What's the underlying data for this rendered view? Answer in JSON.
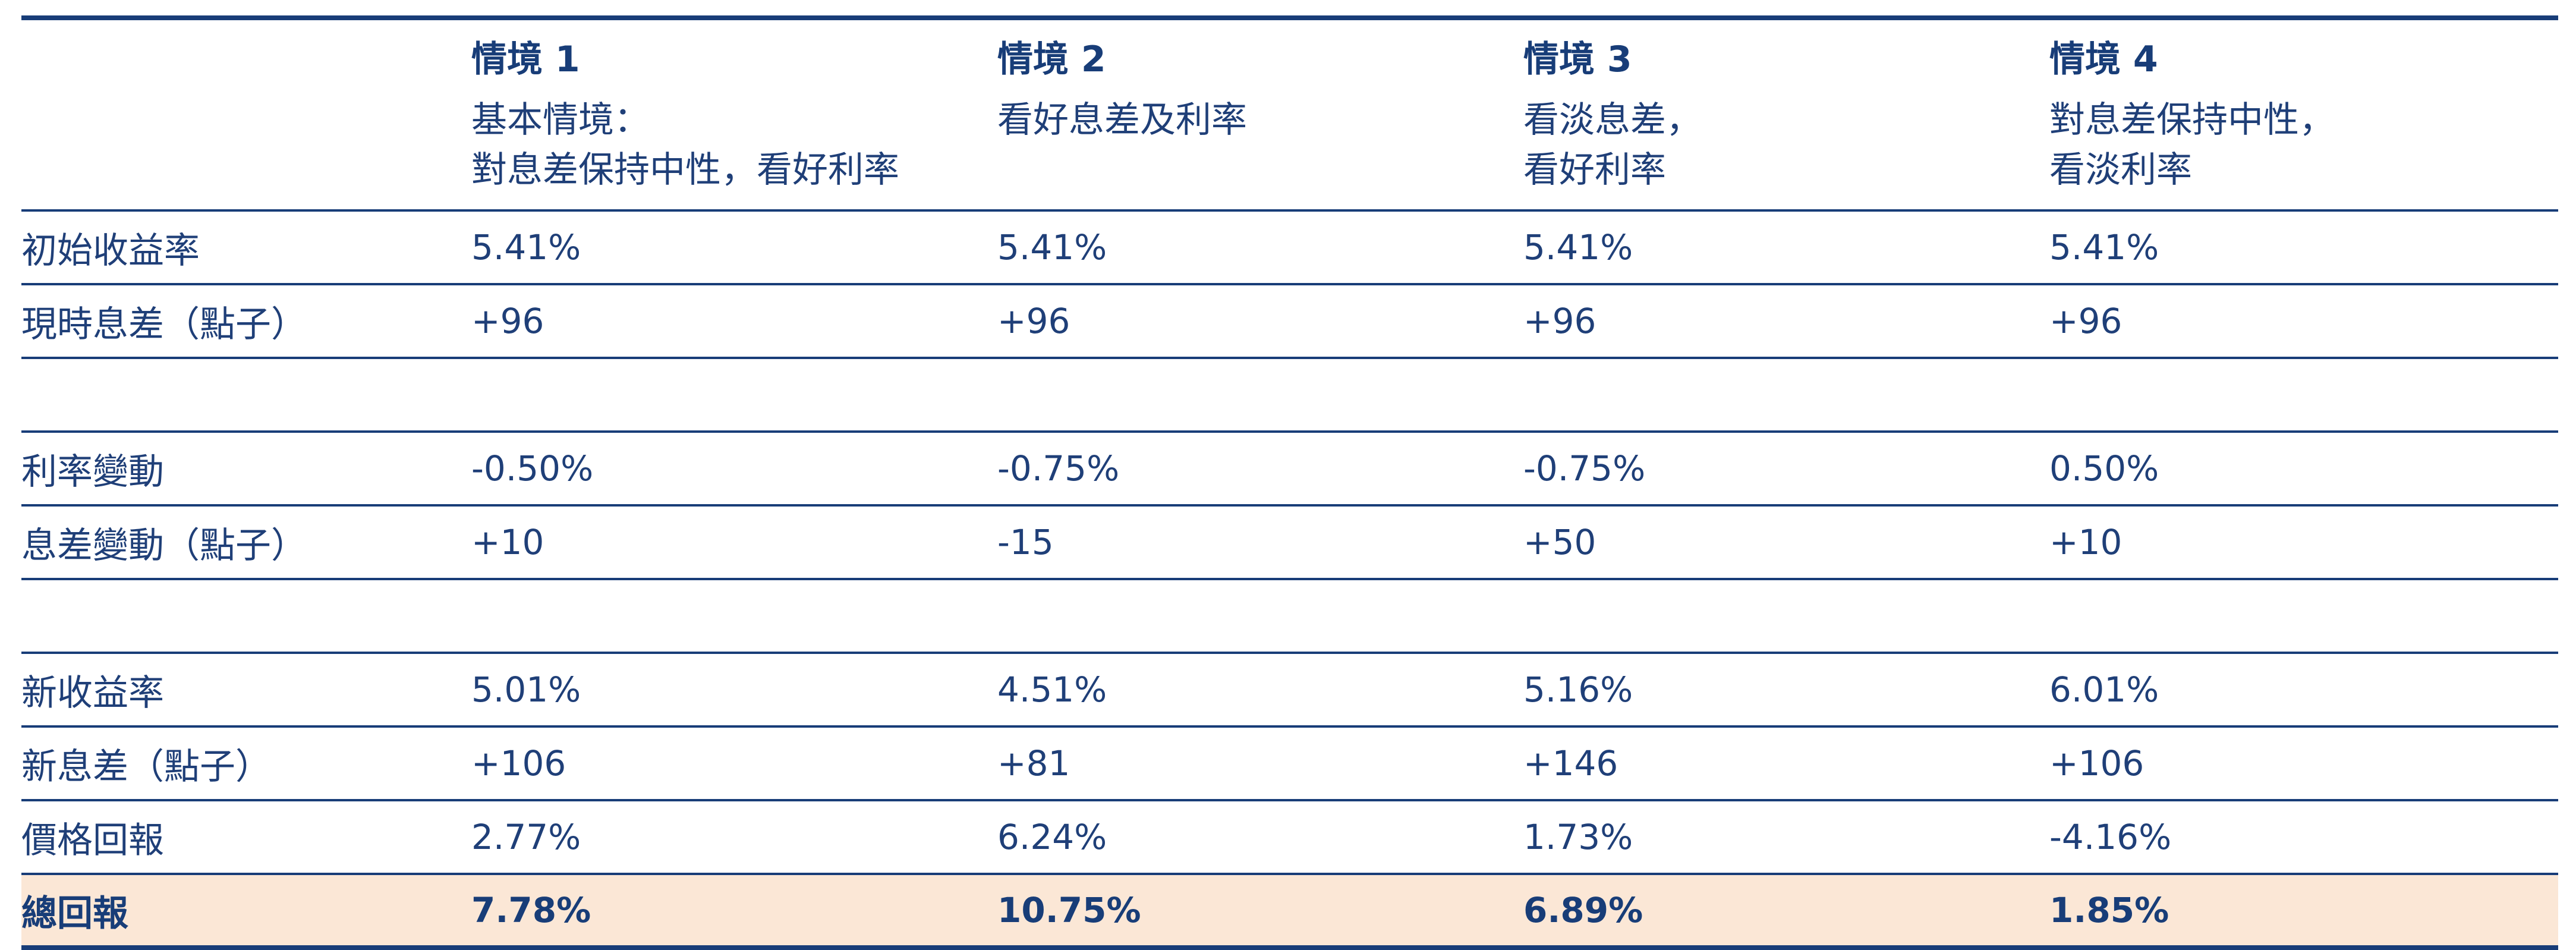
{
  "scenarios": [
    {
      "title": "情境 1",
      "desc": [
        "基本情境：",
        "對息差保持中性，看好利率"
      ]
    },
    {
      "title": "情境 2",
      "desc": [
        "看好息差及利率"
      ]
    },
    {
      "title": "情境 3",
      "desc": [
        "看淡息差，",
        "看好利率"
      ]
    },
    {
      "title": "情境 4",
      "desc": [
        "對息差保持中性，",
        "看淡利率"
      ]
    }
  ],
  "rows": {
    "initial_yield": {
      "label": "初始收益率",
      "values": [
        "5.41%",
        "5.41%",
        "5.41%",
        "5.41%"
      ]
    },
    "current_spread": {
      "label": "現時息差（點子）",
      "values": [
        "+96",
        "+96",
        "+96",
        "+96"
      ]
    },
    "rate_change": {
      "label": "利率變動",
      "values": [
        "-0.50%",
        "-0.75%",
        "-0.75%",
        "0.50%"
      ]
    },
    "spread_change": {
      "label": "息差變動（點子）",
      "values": [
        "+10",
        "-15",
        "+50",
        "+10"
      ]
    },
    "new_yield": {
      "label": "新收益率",
      "values": [
        "5.01%",
        "4.51%",
        "5.16%",
        "6.01%"
      ]
    },
    "new_spread": {
      "label": "新息差（點子）",
      "values": [
        "+106",
        "+81",
        "+146",
        "+106"
      ]
    },
    "price_return": {
      "label": "價格回報",
      "values": [
        "2.77%",
        "6.24%",
        "1.73%",
        "-4.16%"
      ]
    },
    "total_return": {
      "label": "總回報",
      "values": [
        "7.78%",
        "10.75%",
        "6.89%",
        "1.85%"
      ]
    }
  },
  "colors": {
    "text": "#1f3f78",
    "rule": "#183d78",
    "total_highlight": "#fbe7d6"
  }
}
